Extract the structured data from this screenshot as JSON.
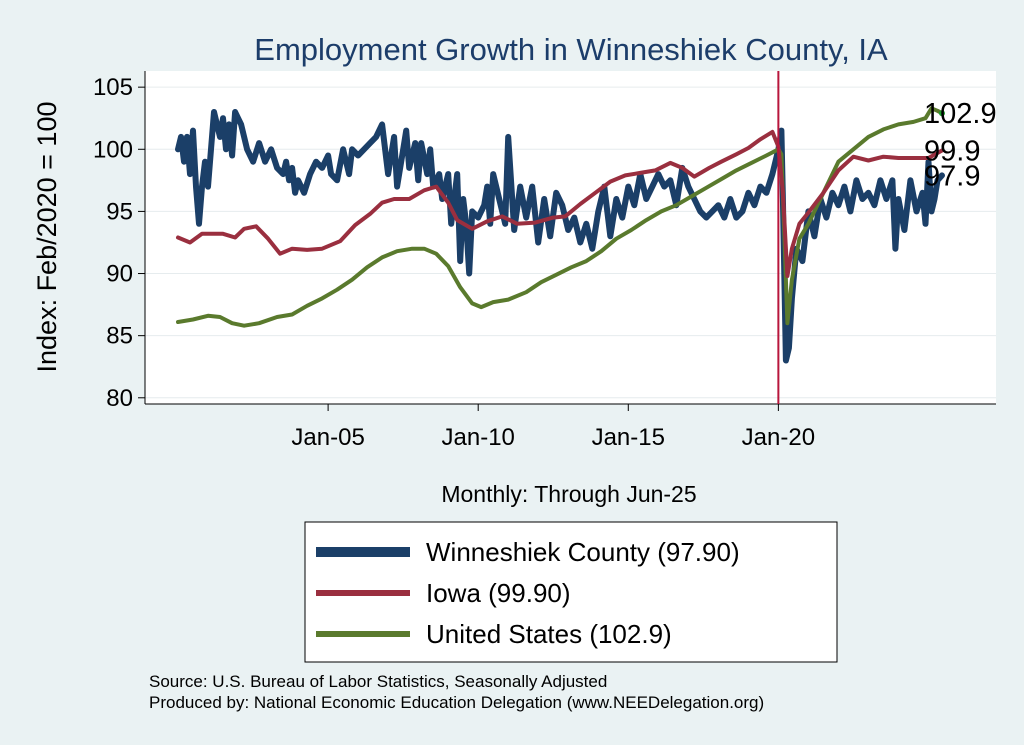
{
  "chart_data": {
    "type": "line",
    "title": "Employment Growth in Winneshiek  County, IA",
    "ylabel": "Index: Feb/2020 = 100",
    "xlabel": "Monthly: Through Jun-25",
    "ylim": [
      79.5,
      106.3
    ],
    "xlim": [
      1998.9,
      2027.25
    ],
    "yticks": [
      80,
      85,
      90,
      95,
      100,
      105
    ],
    "xticks": [
      {
        "label": "Jan-05",
        "value": 2005.0
      },
      {
        "label": "Jan-10",
        "value": 2010.0
      },
      {
        "label": "Jan-15",
        "value": 2015.0
      },
      {
        "label": "Jan-20",
        "value": 2020.0
      }
    ],
    "reference_line": {
      "x": 2020.0,
      "color": "#b8163c"
    },
    "grid": true,
    "legend_position": "bottom",
    "end_marker": {
      "x": 2025.45,
      "y": 102.9,
      "color": "#1e9e2c"
    },
    "series": [
      {
        "name": "Winneshiek  County (97.90)",
        "end_label": "97.9",
        "color": "#1b3f68",
        "width": 6,
        "points": [
          [
            2000.0,
            100.0
          ],
          [
            2000.1,
            101.0
          ],
          [
            2000.2,
            99.0
          ],
          [
            2000.3,
            101.0
          ],
          [
            2000.4,
            98.0
          ],
          [
            2000.5,
            101.5
          ],
          [
            2000.6,
            97.0
          ],
          [
            2000.7,
            94.0
          ],
          [
            2000.8,
            97.0
          ],
          [
            2000.9,
            99.0
          ],
          [
            2001.0,
            97.0
          ],
          [
            2001.2,
            103.0
          ],
          [
            2001.4,
            101.0
          ],
          [
            2001.5,
            102.5
          ],
          [
            2001.6,
            100.0
          ],
          [
            2001.7,
            102.0
          ],
          [
            2001.8,
            99.5
          ],
          [
            2001.9,
            103.0
          ],
          [
            2002.1,
            102.0
          ],
          [
            2002.3,
            100.0
          ],
          [
            2002.5,
            99.0
          ],
          [
            2002.7,
            100.5
          ],
          [
            2002.9,
            99.0
          ],
          [
            2003.1,
            100.0
          ],
          [
            2003.3,
            98.5
          ],
          [
            2003.5,
            98.0
          ],
          [
            2003.6,
            99.0
          ],
          [
            2003.7,
            97.5
          ],
          [
            2003.8,
            98.5
          ],
          [
            2003.9,
            96.5
          ],
          [
            2004.0,
            97.5
          ],
          [
            2004.2,
            96.5
          ],
          [
            2004.4,
            98.0
          ],
          [
            2004.6,
            99.0
          ],
          [
            2004.8,
            98.5
          ],
          [
            2005.0,
            99.5
          ],
          [
            2005.1,
            98.0
          ],
          [
            2005.3,
            97.5
          ],
          [
            2005.5,
            100.0
          ],
          [
            2005.7,
            98.0
          ],
          [
            2005.8,
            100.0
          ],
          [
            2006.0,
            99.5
          ],
          [
            2006.2,
            100.0
          ],
          [
            2006.4,
            100.5
          ],
          [
            2006.6,
            101.0
          ],
          [
            2006.8,
            102.0
          ],
          [
            2007.0,
            98.0
          ],
          [
            2007.2,
            101.0
          ],
          [
            2007.3,
            97.0
          ],
          [
            2007.5,
            100.0
          ],
          [
            2007.6,
            101.5
          ],
          [
            2007.7,
            98.5
          ],
          [
            2007.9,
            100.5
          ],
          [
            2008.0,
            97.5
          ],
          [
            2008.1,
            100.5
          ],
          [
            2008.3,
            98.0
          ],
          [
            2008.4,
            100.0
          ],
          [
            2008.5,
            97.0
          ],
          [
            2008.7,
            98.0
          ],
          [
            2008.8,
            96.0
          ],
          [
            2009.0,
            98.0
          ],
          [
            2009.1,
            94.0
          ],
          [
            2009.3,
            98.0
          ],
          [
            2009.4,
            91.0
          ],
          [
            2009.5,
            96.0
          ],
          [
            2009.6,
            94.0
          ],
          [
            2009.7,
            90.0
          ],
          [
            2009.8,
            95.0
          ],
          [
            2010.0,
            94.5
          ],
          [
            2010.2,
            95.5
          ],
          [
            2010.3,
            97.0
          ],
          [
            2010.4,
            94.0
          ],
          [
            2010.5,
            98.0
          ],
          [
            2010.7,
            96.0
          ],
          [
            2010.9,
            94.0
          ],
          [
            2011.0,
            101.0
          ],
          [
            2011.2,
            93.5
          ],
          [
            2011.4,
            97.0
          ],
          [
            2011.6,
            94.5
          ],
          [
            2011.8,
            97.0
          ],
          [
            2012.0,
            92.5
          ],
          [
            2012.2,
            96.0
          ],
          [
            2012.4,
            93.0
          ],
          [
            2012.6,
            96.5
          ],
          [
            2012.8,
            95.5
          ],
          [
            2013.0,
            93.5
          ],
          [
            2013.2,
            94.5
          ],
          [
            2013.4,
            92.5
          ],
          [
            2013.6,
            94.0
          ],
          [
            2013.8,
            92.0
          ],
          [
            2014.0,
            95.0
          ],
          [
            2014.2,
            97.0
          ],
          [
            2014.4,
            93.0
          ],
          [
            2014.6,
            96.0
          ],
          [
            2014.8,
            94.5
          ],
          [
            2015.0,
            97.0
          ],
          [
            2015.2,
            95.5
          ],
          [
            2015.4,
            98.0
          ],
          [
            2015.6,
            96.0
          ],
          [
            2015.8,
            97.0
          ],
          [
            2016.0,
            98.0
          ],
          [
            2016.2,
            97.0
          ],
          [
            2016.4,
            97.5
          ],
          [
            2016.6,
            95.5
          ],
          [
            2016.8,
            98.5
          ],
          [
            2017.0,
            97.0
          ],
          [
            2017.2,
            96.0
          ],
          [
            2017.4,
            95.0
          ],
          [
            2017.6,
            94.5
          ],
          [
            2017.8,
            95.0
          ],
          [
            2018.0,
            95.5
          ],
          [
            2018.2,
            94.5
          ],
          [
            2018.4,
            96.0
          ],
          [
            2018.6,
            94.5
          ],
          [
            2018.8,
            95.0
          ],
          [
            2019.0,
            96.5
          ],
          [
            2019.2,
            95.5
          ],
          [
            2019.4,
            97.0
          ],
          [
            2019.6,
            96.5
          ],
          [
            2019.8,
            98.0
          ],
          [
            2020.0,
            100.0
          ],
          [
            2020.1,
            101.5
          ],
          [
            2020.15,
            96.0
          ],
          [
            2020.25,
            83.0
          ],
          [
            2020.35,
            84.0
          ],
          [
            2020.45,
            88.0
          ],
          [
            2020.6,
            92.0
          ],
          [
            2020.8,
            91.0
          ],
          [
            2021.0,
            95.0
          ],
          [
            2021.2,
            93.0
          ],
          [
            2021.4,
            96.0
          ],
          [
            2021.6,
            94.5
          ],
          [
            2021.8,
            96.5
          ],
          [
            2022.0,
            95.5
          ],
          [
            2022.2,
            97.0
          ],
          [
            2022.4,
            95.0
          ],
          [
            2022.6,
            97.5
          ],
          [
            2022.8,
            96.0
          ],
          [
            2023.0,
            96.5
          ],
          [
            2023.2,
            95.5
          ],
          [
            2023.4,
            97.5
          ],
          [
            2023.6,
            96.0
          ],
          [
            2023.8,
            97.5
          ],
          [
            2023.9,
            92.0
          ],
          [
            2024.0,
            96.0
          ],
          [
            2024.2,
            93.5
          ],
          [
            2024.4,
            97.5
          ],
          [
            2024.6,
            95.0
          ],
          [
            2024.8,
            96.5
          ],
          [
            2024.9,
            94.0
          ],
          [
            2025.0,
            99.0
          ],
          [
            2025.1,
            95.0
          ],
          [
            2025.2,
            96.0
          ],
          [
            2025.3,
            97.5
          ],
          [
            2025.45,
            97.9
          ]
        ]
      },
      {
        "name": "Iowa (99.90)",
        "end_label": "99.9",
        "color": "#9a2f3f",
        "width": 4,
        "points": [
          [
            2000.0,
            92.9
          ],
          [
            2000.4,
            92.5
          ],
          [
            2000.8,
            93.2
          ],
          [
            2001.5,
            93.2
          ],
          [
            2001.9,
            92.9
          ],
          [
            2002.2,
            93.6
          ],
          [
            2002.6,
            93.8
          ],
          [
            2003.0,
            92.8
          ],
          [
            2003.4,
            91.6
          ],
          [
            2003.8,
            92.0
          ],
          [
            2004.3,
            91.9
          ],
          [
            2004.8,
            92.0
          ],
          [
            2005.4,
            92.6
          ],
          [
            2005.9,
            93.9
          ],
          [
            2006.4,
            94.8
          ],
          [
            2006.8,
            95.7
          ],
          [
            2007.2,
            96.0
          ],
          [
            2007.7,
            96.0
          ],
          [
            2008.2,
            96.7
          ],
          [
            2008.6,
            97.0
          ],
          [
            2009.0,
            95.7
          ],
          [
            2009.3,
            94.3
          ],
          [
            2009.8,
            93.6
          ],
          [
            2010.3,
            94.2
          ],
          [
            2010.8,
            94.6
          ],
          [
            2011.3,
            94.0
          ],
          [
            2011.9,
            94.1
          ],
          [
            2012.5,
            94.5
          ],
          [
            2012.9,
            94.6
          ],
          [
            2013.4,
            95.6
          ],
          [
            2013.9,
            96.5
          ],
          [
            2014.4,
            97.4
          ],
          [
            2014.9,
            97.9
          ],
          [
            2015.4,
            98.1
          ],
          [
            2015.9,
            98.3
          ],
          [
            2016.4,
            98.9
          ],
          [
            2016.8,
            98.5
          ],
          [
            2017.2,
            97.8
          ],
          [
            2017.7,
            98.5
          ],
          [
            2018.1,
            99.0
          ],
          [
            2018.6,
            99.6
          ],
          [
            2019.0,
            100.1
          ],
          [
            2019.4,
            100.8
          ],
          [
            2019.8,
            101.4
          ],
          [
            2020.0,
            100.2
          ],
          [
            2020.15,
            96.5
          ],
          [
            2020.3,
            89.8
          ],
          [
            2020.45,
            92.0
          ],
          [
            2020.7,
            94.0
          ],
          [
            2021.0,
            94.9
          ],
          [
            2021.5,
            96.5
          ],
          [
            2022.0,
            98.3
          ],
          [
            2022.5,
            99.4
          ],
          [
            2023.0,
            99.1
          ],
          [
            2023.5,
            99.4
          ],
          [
            2024.0,
            99.3
          ],
          [
            2024.5,
            99.3
          ],
          [
            2025.0,
            99.3
          ],
          [
            2025.45,
            99.9
          ]
        ]
      },
      {
        "name": "United States (102.9)",
        "end_label": "102.9",
        "color": "#5a7a2d",
        "width": 4,
        "points": [
          [
            2000.0,
            86.1
          ],
          [
            2000.5,
            86.3
          ],
          [
            2001.0,
            86.6
          ],
          [
            2001.4,
            86.5
          ],
          [
            2001.8,
            86.0
          ],
          [
            2002.2,
            85.8
          ],
          [
            2002.7,
            86.0
          ],
          [
            2003.3,
            86.5
          ],
          [
            2003.8,
            86.7
          ],
          [
            2004.3,
            87.4
          ],
          [
            2004.8,
            88.0
          ],
          [
            2005.3,
            88.7
          ],
          [
            2005.8,
            89.5
          ],
          [
            2006.3,
            90.5
          ],
          [
            2006.8,
            91.3
          ],
          [
            2007.3,
            91.8
          ],
          [
            2007.8,
            92.0
          ],
          [
            2008.2,
            92.0
          ],
          [
            2008.6,
            91.6
          ],
          [
            2009.0,
            90.6
          ],
          [
            2009.4,
            88.9
          ],
          [
            2009.8,
            87.6
          ],
          [
            2010.1,
            87.3
          ],
          [
            2010.5,
            87.7
          ],
          [
            2011.0,
            87.9
          ],
          [
            2011.6,
            88.5
          ],
          [
            2012.1,
            89.3
          ],
          [
            2012.6,
            89.9
          ],
          [
            2013.1,
            90.5
          ],
          [
            2013.6,
            91.0
          ],
          [
            2014.1,
            91.8
          ],
          [
            2014.6,
            92.8
          ],
          [
            2015.1,
            93.5
          ],
          [
            2015.6,
            94.3
          ],
          [
            2016.1,
            95.0
          ],
          [
            2016.6,
            95.5
          ],
          [
            2017.1,
            96.2
          ],
          [
            2017.6,
            96.9
          ],
          [
            2018.1,
            97.6
          ],
          [
            2018.6,
            98.3
          ],
          [
            2019.1,
            98.9
          ],
          [
            2019.6,
            99.5
          ],
          [
            2020.0,
            100.0
          ],
          [
            2020.1,
            99.6
          ],
          [
            2020.2,
            93.0
          ],
          [
            2020.3,
            86.0
          ],
          [
            2020.45,
            89.5
          ],
          [
            2020.7,
            92.8
          ],
          [
            2021.0,
            94.0
          ],
          [
            2021.5,
            96.5
          ],
          [
            2022.0,
            99.0
          ],
          [
            2022.5,
            100.0
          ],
          [
            2023.0,
            101.0
          ],
          [
            2023.5,
            101.6
          ],
          [
            2024.0,
            102.0
          ],
          [
            2024.5,
            102.2
          ],
          [
            2024.9,
            102.5
          ],
          [
            2025.1,
            103.3
          ],
          [
            2025.3,
            103.1
          ],
          [
            2025.45,
            102.9
          ]
        ]
      }
    ]
  },
  "notes": {
    "source": "Source: U.S. Bureau of Labor Statistics, Seasonally Adjusted",
    "produced_by": "Produced by: National Economic Education Delegation (www.NEEDelegation.org)"
  }
}
